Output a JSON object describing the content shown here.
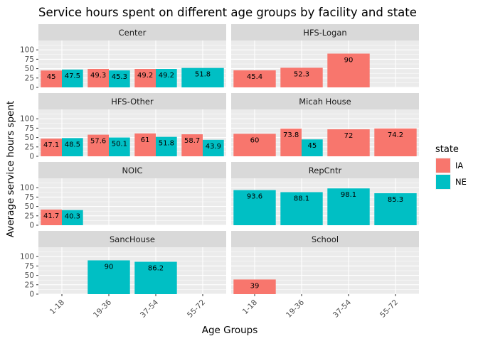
{
  "chart_data": {
    "type": "bar",
    "title": "Service hours spent on different age groups by facility and state",
    "xlabel": "Age Groups",
    "ylabel": "Average service hours spent",
    "categories": [
      "1-18",
      "19-36",
      "37-54",
      "55-72"
    ],
    "ylim": [
      0,
      125
    ],
    "yticks": [
      0,
      25,
      50,
      75,
      100
    ],
    "grid": true,
    "legend": {
      "title": "state",
      "position": "right",
      "items": [
        {
          "name": "IA",
          "color": "#F8766D"
        },
        {
          "name": "NE",
          "color": "#00BFC4"
        }
      ]
    },
    "panels": [
      {
        "facet": "Center",
        "bars": [
          {
            "category": "1-18",
            "state": "IA",
            "value": 45,
            "label": "45"
          },
          {
            "category": "1-18",
            "state": "NE",
            "value": 47.5,
            "label": "47.5"
          },
          {
            "category": "19-36",
            "state": "IA",
            "value": 49.3,
            "label": "49.3"
          },
          {
            "category": "19-36",
            "state": "NE",
            "value": 45.3,
            "label": "45.3"
          },
          {
            "category": "37-54",
            "state": "IA",
            "value": 49.2,
            "label": "49.2"
          },
          {
            "category": "37-54",
            "state": "NE",
            "value": 49.2,
            "label": "49.2"
          },
          {
            "category": "55-72",
            "state": "NE",
            "value": 51.8,
            "label": "51.8",
            "single": true
          }
        ]
      },
      {
        "facet": "HFS-Logan",
        "bars": [
          {
            "category": "1-18",
            "state": "IA",
            "value": 45.4,
            "label": "45.4",
            "single": true
          },
          {
            "category": "19-36",
            "state": "IA",
            "value": 52.3,
            "label": "52.3",
            "single": true
          },
          {
            "category": "37-54",
            "state": "IA",
            "value": 90,
            "label": "90",
            "single": true
          }
        ]
      },
      {
        "facet": "HFS-Other",
        "bars": [
          {
            "category": "1-18",
            "state": "IA",
            "value": 47.1,
            "label": "47.1"
          },
          {
            "category": "1-18",
            "state": "NE",
            "value": 48.5,
            "label": "48.5"
          },
          {
            "category": "19-36",
            "state": "IA",
            "value": 57.6,
            "label": "57.6"
          },
          {
            "category": "19-36",
            "state": "NE",
            "value": 50.1,
            "label": "50.1"
          },
          {
            "category": "37-54",
            "state": "IA",
            "value": 61,
            "label": "61"
          },
          {
            "category": "37-54",
            "state": "NE",
            "value": 51.8,
            "label": "51.8"
          },
          {
            "category": "55-72",
            "state": "IA",
            "value": 58.7,
            "label": "58.7"
          },
          {
            "category": "55-72",
            "state": "NE",
            "value": 43.9,
            "label": "43.9"
          }
        ]
      },
      {
        "facet": "Micah House",
        "bars": [
          {
            "category": "1-18",
            "state": "IA",
            "value": 60,
            "label": "60",
            "single": true
          },
          {
            "category": "19-36",
            "state": "IA",
            "value": 73.8,
            "label": "73.8"
          },
          {
            "category": "19-36",
            "state": "NE",
            "value": 45,
            "label": "45"
          },
          {
            "category": "37-54",
            "state": "IA",
            "value": 72,
            "label": "72",
            "single": true
          },
          {
            "category": "55-72",
            "state": "IA",
            "value": 74.2,
            "label": "74.2",
            "single": true
          }
        ]
      },
      {
        "facet": "NOIC",
        "bars": [
          {
            "category": "1-18",
            "state": "IA",
            "value": 41.7,
            "label": "41.7"
          },
          {
            "category": "1-18",
            "state": "NE",
            "value": 40.3,
            "label": "40.3"
          }
        ]
      },
      {
        "facet": "RepCntr",
        "bars": [
          {
            "category": "1-18",
            "state": "NE",
            "value": 93.6,
            "label": "93.6",
            "single": true
          },
          {
            "category": "19-36",
            "state": "NE",
            "value": 88.1,
            "label": "88.1",
            "single": true
          },
          {
            "category": "37-54",
            "state": "NE",
            "value": 98.1,
            "label": "98.1",
            "single": true
          },
          {
            "category": "55-72",
            "state": "NE",
            "value": 85.3,
            "label": "85.3",
            "single": true
          }
        ]
      },
      {
        "facet": "SancHouse",
        "bars": [
          {
            "category": "19-36",
            "state": "NE",
            "value": 90,
            "label": "90",
            "single": true
          },
          {
            "category": "37-54",
            "state": "NE",
            "value": 86.2,
            "label": "86.2",
            "single": true
          }
        ]
      },
      {
        "facet": "School",
        "bars": [
          {
            "category": "1-18",
            "state": "IA",
            "value": 39,
            "label": "39",
            "single": true
          }
        ]
      }
    ]
  }
}
